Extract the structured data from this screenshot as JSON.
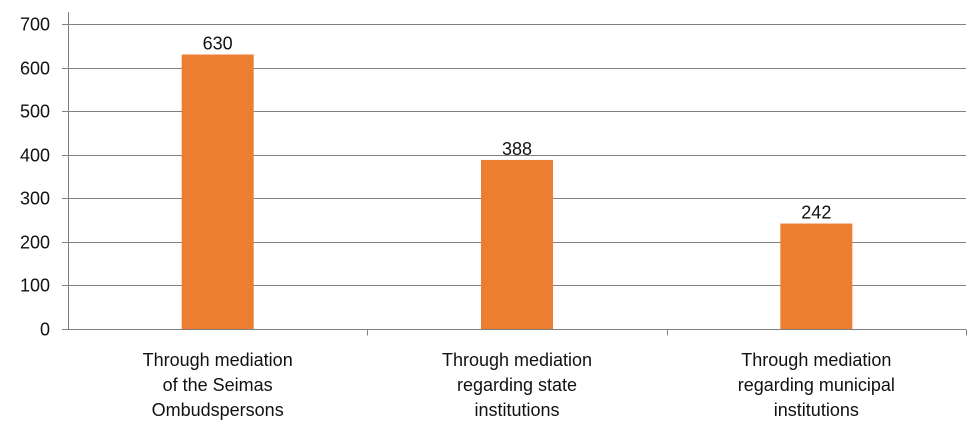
{
  "chart_data": {
    "type": "bar",
    "categories": [
      "Through mediation of the Seimas Ombudspersons",
      "Through mediation regarding state institutions",
      "Through mediation regarding municipal institutions"
    ],
    "category_lines": [
      [
        "Through mediation",
        "of the Seimas",
        "Ombudspersons"
      ],
      [
        "Through mediation",
        "regarding state",
        "institutions"
      ],
      [
        "Through mediation",
        "regarding municipal",
        "institutions"
      ]
    ],
    "values": [
      630,
      388,
      242
    ],
    "data_labels": [
      "630",
      "388",
      "242"
    ],
    "title": "",
    "xlabel": "",
    "ylabel": "",
    "ylim": [
      0,
      700
    ],
    "yticks": [
      0,
      100,
      200,
      300,
      400,
      500,
      600,
      700
    ],
    "grid": true,
    "legend": "none",
    "colors": {
      "bar": "#ED7D31",
      "grid": "#808080",
      "axis": "#808080",
      "text": "#111111"
    }
  }
}
